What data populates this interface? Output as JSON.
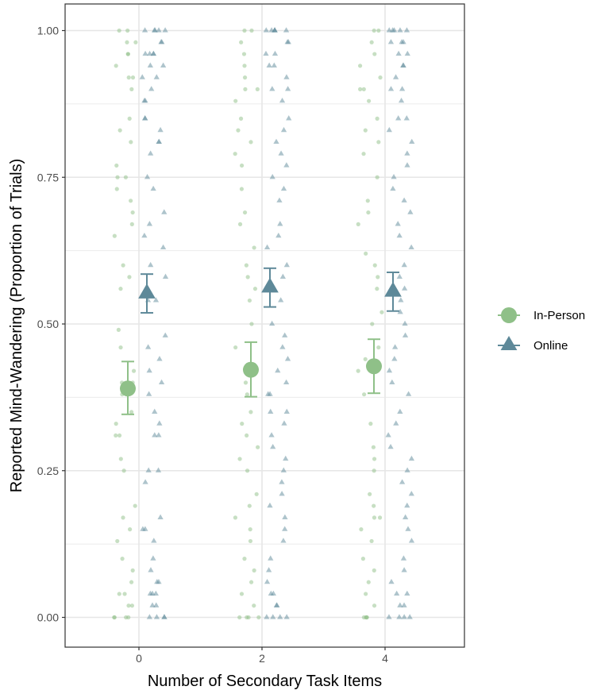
{
  "chart_data": {
    "type": "scatter",
    "xlabel": "Number of Secondary Task Items",
    "ylabel": "Reported Mind-Wandering (Proportion of Trials)",
    "x_ticks": [
      "0",
      "2",
      "4"
    ],
    "y_ticks": [
      "0.00",
      "0.25",
      "0.50",
      "0.75",
      "1.00"
    ],
    "ylim": [
      -0.03,
      1.03
    ],
    "grid": true,
    "legend_position": "right",
    "colors": {
      "In-Person": "#8fc088",
      "Online": "#5e8999"
    },
    "series": [
      {
        "name": "In-Person",
        "marker": "circle",
        "summary": [
          {
            "x": 0,
            "mean": 0.39,
            "lower": 0.346,
            "upper": 0.436
          },
          {
            "x": 2,
            "mean": 0.422,
            "lower": 0.376,
            "upper": 0.469
          },
          {
            "x": 4,
            "mean": 0.428,
            "lower": 0.382,
            "upper": 0.474
          }
        ],
        "raw": [
          {
            "x": 0,
            "values": [
              1,
              1,
              0.98,
              0.98,
              0.96,
              0.96,
              0.94,
              0.92,
              0.92,
              0.9,
              0.85,
              0.83,
              0.81,
              0.77,
              0.75,
              0.75,
              0.73,
              0.71,
              0.69,
              0.67,
              0.65,
              0.6,
              0.58,
              0.56,
              0.49,
              0.46,
              0.42,
              0.4,
              0.4,
              0.38,
              0.35,
              0.33,
              0.31,
              0.31,
              0.27,
              0.25,
              0.19,
              0.17,
              0.15,
              0.13,
              0.1,
              0.08,
              0.06,
              0.04,
              0.04,
              0.02,
              0.02,
              0,
              0,
              0,
              0
            ]
          },
          {
            "x": 2,
            "values": [
              1,
              1,
              0.98,
              0.96,
              0.94,
              0.92,
              0.9,
              0.9,
              0.88,
              0.85,
              0.83,
              0.81,
              0.79,
              0.77,
              0.73,
              0.69,
              0.67,
              0.63,
              0.6,
              0.58,
              0.56,
              0.54,
              0.5,
              0.46,
              0.42,
              0.4,
              0.38,
              0.35,
              0.33,
              0.31,
              0.29,
              0.27,
              0.25,
              0.21,
              0.19,
              0.17,
              0.15,
              0.13,
              0.1,
              0.08,
              0.06,
              0.04,
              0.02,
              0,
              0,
              0,
              0
            ]
          },
          {
            "x": 4,
            "values": [
              1,
              1,
              0.98,
              0.96,
              0.94,
              0.92,
              0.9,
              0.9,
              0.88,
              0.85,
              0.83,
              0.81,
              0.79,
              0.75,
              0.71,
              0.69,
              0.67,
              0.62,
              0.6,
              0.58,
              0.56,
              0.52,
              0.5,
              0.46,
              0.44,
              0.42,
              0.38,
              0.33,
              0.29,
              0.27,
              0.25,
              0.21,
              0.19,
              0.17,
              0.17,
              0.15,
              0.13,
              0.1,
              0.08,
              0.06,
              0.04,
              0.02,
              0,
              0,
              0,
              0
            ]
          }
        ]
      },
      {
        "name": "Online",
        "marker": "triangle",
        "summary": [
          {
            "x": 0,
            "mean": 0.552,
            "lower": 0.519,
            "upper": 0.585
          },
          {
            "x": 2,
            "mean": 0.562,
            "lower": 0.529,
            "upper": 0.595
          },
          {
            "x": 4,
            "mean": 0.555,
            "lower": 0.522,
            "upper": 0.588
          }
        ],
        "raw": [
          {
            "x": 0,
            "values": [
              1,
              1,
              1,
              1,
              1,
              0.98,
              0.98,
              0.96,
              0.96,
              0.96,
              0.96,
              0.94,
              0.94,
              0.92,
              0.92,
              0.9,
              0.88,
              0.88,
              0.85,
              0.85,
              0.83,
              0.81,
              0.81,
              0.79,
              0.75,
              0.73,
              0.69,
              0.67,
              0.65,
              0.63,
              0.6,
              0.58,
              0.56,
              0.54,
              0.54,
              0.48,
              0.46,
              0.44,
              0.42,
              0.4,
              0.38,
              0.35,
              0.33,
              0.31,
              0.31,
              0.25,
              0.25,
              0.23,
              0.17,
              0.15,
              0.15,
              0.13,
              0.1,
              0.08,
              0.06,
              0.06,
              0.04,
              0.04,
              0.04,
              0.02,
              0.02,
              0,
              0,
              0,
              0
            ]
          },
          {
            "x": 2,
            "values": [
              1,
              1,
              1,
              1,
              1,
              1,
              0.98,
              0.98,
              0.96,
              0.96,
              0.94,
              0.94,
              0.92,
              0.9,
              0.9,
              0.88,
              0.85,
              0.83,
              0.81,
              0.79,
              0.77,
              0.75,
              0.73,
              0.71,
              0.67,
              0.65,
              0.63,
              0.6,
              0.58,
              0.56,
              0.54,
              0.5,
              0.48,
              0.46,
              0.44,
              0.42,
              0.4,
              0.38,
              0.38,
              0.35,
              0.35,
              0.33,
              0.31,
              0.29,
              0.27,
              0.25,
              0.23,
              0.21,
              0.19,
              0.17,
              0.15,
              0.13,
              0.1,
              0.08,
              0.06,
              0.04,
              0.04,
              0.02,
              0.02,
              0,
              0,
              0,
              0
            ]
          },
          {
            "x": 4,
            "values": [
              1,
              1,
              1,
              1,
              1,
              0.98,
              0.98,
              0.98,
              0.96,
              0.96,
              0.94,
              0.94,
              0.92,
              0.9,
              0.9,
              0.88,
              0.85,
              0.85,
              0.83,
              0.81,
              0.79,
              0.77,
              0.75,
              0.73,
              0.71,
              0.69,
              0.67,
              0.65,
              0.63,
              0.6,
              0.58,
              0.56,
              0.54,
              0.52,
              0.5,
              0.48,
              0.46,
              0.44,
              0.42,
              0.4,
              0.38,
              0.35,
              0.33,
              0.31,
              0.29,
              0.27,
              0.25,
              0.23,
              0.21,
              0.19,
              0.17,
              0.15,
              0.13,
              0.1,
              0.08,
              0.06,
              0.04,
              0.04,
              0.02,
              0.02,
              0,
              0,
              0,
              0
            ]
          }
        ]
      }
    ]
  }
}
